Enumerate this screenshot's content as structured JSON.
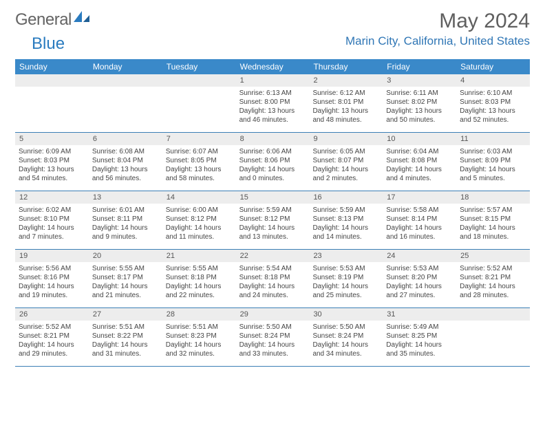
{
  "logo": {
    "word1": "General",
    "word2": "Blue",
    "accent_color": "#2a7bbf"
  },
  "title": "May 2024",
  "location": "Marin City, California, United States",
  "colors": {
    "header_bar": "#3a89c9",
    "week_divider": "#3a7eb5",
    "daynum_bg": "#ededed",
    "text": "#444444",
    "title_text": "#5f5f5f"
  },
  "weekdays": [
    "Sunday",
    "Monday",
    "Tuesday",
    "Wednesday",
    "Thursday",
    "Friday",
    "Saturday"
  ],
  "weeks": [
    [
      {
        "n": "",
        "lines": []
      },
      {
        "n": "",
        "lines": []
      },
      {
        "n": "",
        "lines": []
      },
      {
        "n": "1",
        "lines": [
          "Sunrise: 6:13 AM",
          "Sunset: 8:00 PM",
          "Daylight: 13 hours",
          "and 46 minutes."
        ]
      },
      {
        "n": "2",
        "lines": [
          "Sunrise: 6:12 AM",
          "Sunset: 8:01 PM",
          "Daylight: 13 hours",
          "and 48 minutes."
        ]
      },
      {
        "n": "3",
        "lines": [
          "Sunrise: 6:11 AM",
          "Sunset: 8:02 PM",
          "Daylight: 13 hours",
          "and 50 minutes."
        ]
      },
      {
        "n": "4",
        "lines": [
          "Sunrise: 6:10 AM",
          "Sunset: 8:03 PM",
          "Daylight: 13 hours",
          "and 52 minutes."
        ]
      }
    ],
    [
      {
        "n": "5",
        "lines": [
          "Sunrise: 6:09 AM",
          "Sunset: 8:03 PM",
          "Daylight: 13 hours",
          "and 54 minutes."
        ]
      },
      {
        "n": "6",
        "lines": [
          "Sunrise: 6:08 AM",
          "Sunset: 8:04 PM",
          "Daylight: 13 hours",
          "and 56 minutes."
        ]
      },
      {
        "n": "7",
        "lines": [
          "Sunrise: 6:07 AM",
          "Sunset: 8:05 PM",
          "Daylight: 13 hours",
          "and 58 minutes."
        ]
      },
      {
        "n": "8",
        "lines": [
          "Sunrise: 6:06 AM",
          "Sunset: 8:06 PM",
          "Daylight: 14 hours",
          "and 0 minutes."
        ]
      },
      {
        "n": "9",
        "lines": [
          "Sunrise: 6:05 AM",
          "Sunset: 8:07 PM",
          "Daylight: 14 hours",
          "and 2 minutes."
        ]
      },
      {
        "n": "10",
        "lines": [
          "Sunrise: 6:04 AM",
          "Sunset: 8:08 PM",
          "Daylight: 14 hours",
          "and 4 minutes."
        ]
      },
      {
        "n": "11",
        "lines": [
          "Sunrise: 6:03 AM",
          "Sunset: 8:09 PM",
          "Daylight: 14 hours",
          "and 5 minutes."
        ]
      }
    ],
    [
      {
        "n": "12",
        "lines": [
          "Sunrise: 6:02 AM",
          "Sunset: 8:10 PM",
          "Daylight: 14 hours",
          "and 7 minutes."
        ]
      },
      {
        "n": "13",
        "lines": [
          "Sunrise: 6:01 AM",
          "Sunset: 8:11 PM",
          "Daylight: 14 hours",
          "and 9 minutes."
        ]
      },
      {
        "n": "14",
        "lines": [
          "Sunrise: 6:00 AM",
          "Sunset: 8:12 PM",
          "Daylight: 14 hours",
          "and 11 minutes."
        ]
      },
      {
        "n": "15",
        "lines": [
          "Sunrise: 5:59 AM",
          "Sunset: 8:12 PM",
          "Daylight: 14 hours",
          "and 13 minutes."
        ]
      },
      {
        "n": "16",
        "lines": [
          "Sunrise: 5:59 AM",
          "Sunset: 8:13 PM",
          "Daylight: 14 hours",
          "and 14 minutes."
        ]
      },
      {
        "n": "17",
        "lines": [
          "Sunrise: 5:58 AM",
          "Sunset: 8:14 PM",
          "Daylight: 14 hours",
          "and 16 minutes."
        ]
      },
      {
        "n": "18",
        "lines": [
          "Sunrise: 5:57 AM",
          "Sunset: 8:15 PM",
          "Daylight: 14 hours",
          "and 18 minutes."
        ]
      }
    ],
    [
      {
        "n": "19",
        "lines": [
          "Sunrise: 5:56 AM",
          "Sunset: 8:16 PM",
          "Daylight: 14 hours",
          "and 19 minutes."
        ]
      },
      {
        "n": "20",
        "lines": [
          "Sunrise: 5:55 AM",
          "Sunset: 8:17 PM",
          "Daylight: 14 hours",
          "and 21 minutes."
        ]
      },
      {
        "n": "21",
        "lines": [
          "Sunrise: 5:55 AM",
          "Sunset: 8:18 PM",
          "Daylight: 14 hours",
          "and 22 minutes."
        ]
      },
      {
        "n": "22",
        "lines": [
          "Sunrise: 5:54 AM",
          "Sunset: 8:18 PM",
          "Daylight: 14 hours",
          "and 24 minutes."
        ]
      },
      {
        "n": "23",
        "lines": [
          "Sunrise: 5:53 AM",
          "Sunset: 8:19 PM",
          "Daylight: 14 hours",
          "and 25 minutes."
        ]
      },
      {
        "n": "24",
        "lines": [
          "Sunrise: 5:53 AM",
          "Sunset: 8:20 PM",
          "Daylight: 14 hours",
          "and 27 minutes."
        ]
      },
      {
        "n": "25",
        "lines": [
          "Sunrise: 5:52 AM",
          "Sunset: 8:21 PM",
          "Daylight: 14 hours",
          "and 28 minutes."
        ]
      }
    ],
    [
      {
        "n": "26",
        "lines": [
          "Sunrise: 5:52 AM",
          "Sunset: 8:21 PM",
          "Daylight: 14 hours",
          "and 29 minutes."
        ]
      },
      {
        "n": "27",
        "lines": [
          "Sunrise: 5:51 AM",
          "Sunset: 8:22 PM",
          "Daylight: 14 hours",
          "and 31 minutes."
        ]
      },
      {
        "n": "28",
        "lines": [
          "Sunrise: 5:51 AM",
          "Sunset: 8:23 PM",
          "Daylight: 14 hours",
          "and 32 minutes."
        ]
      },
      {
        "n": "29",
        "lines": [
          "Sunrise: 5:50 AM",
          "Sunset: 8:24 PM",
          "Daylight: 14 hours",
          "and 33 minutes."
        ]
      },
      {
        "n": "30",
        "lines": [
          "Sunrise: 5:50 AM",
          "Sunset: 8:24 PM",
          "Daylight: 14 hours",
          "and 34 minutes."
        ]
      },
      {
        "n": "31",
        "lines": [
          "Sunrise: 5:49 AM",
          "Sunset: 8:25 PM",
          "Daylight: 14 hours",
          "and 35 minutes."
        ]
      },
      {
        "n": "",
        "lines": []
      }
    ]
  ]
}
